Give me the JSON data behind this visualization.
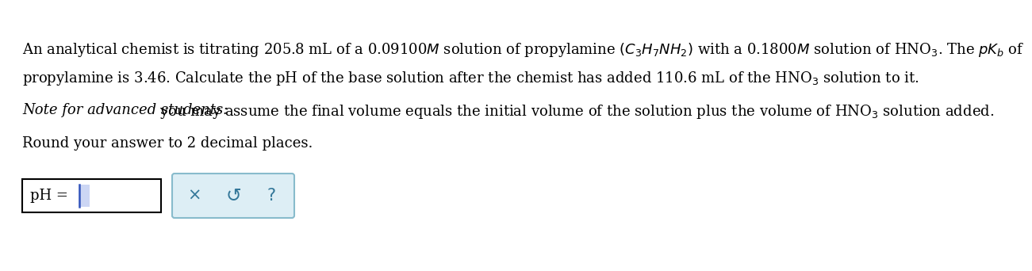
{
  "bg_color": "#ffffff",
  "text_color": "#000000",
  "line1": "An analytical chemist is titrating 205.8 mL of a 0.09100$M$ solution of propylamine $(C_3H_7NH_2)$ with a 0.1800$M$ solution of HNO$_3$. The $pK_b$ of",
  "line2": "propylamine is 3.46. Calculate the pH of the base solution after the chemist has added 110.6 mL of the HNO$_3$ solution to it.",
  "line3_italic": "Note for advanced students: ",
  "line3_rest": "you may assume the final volume equals the initial volume of the solution plus the volume of HNO$_3$ solution added.",
  "line4": "Round your answer to 2 decimal places.",
  "ph_label": "pH = ",
  "input_box_color": "#ffffff",
  "input_box_border": "#000000",
  "button_box_color": "#ddeef5",
  "button_box_border": "#88bbcc",
  "cursor_color": "#3355bb",
  "btn_symbol_color": "#337799",
  "fontsize": 13.0,
  "btn_fontsize": 15.0
}
